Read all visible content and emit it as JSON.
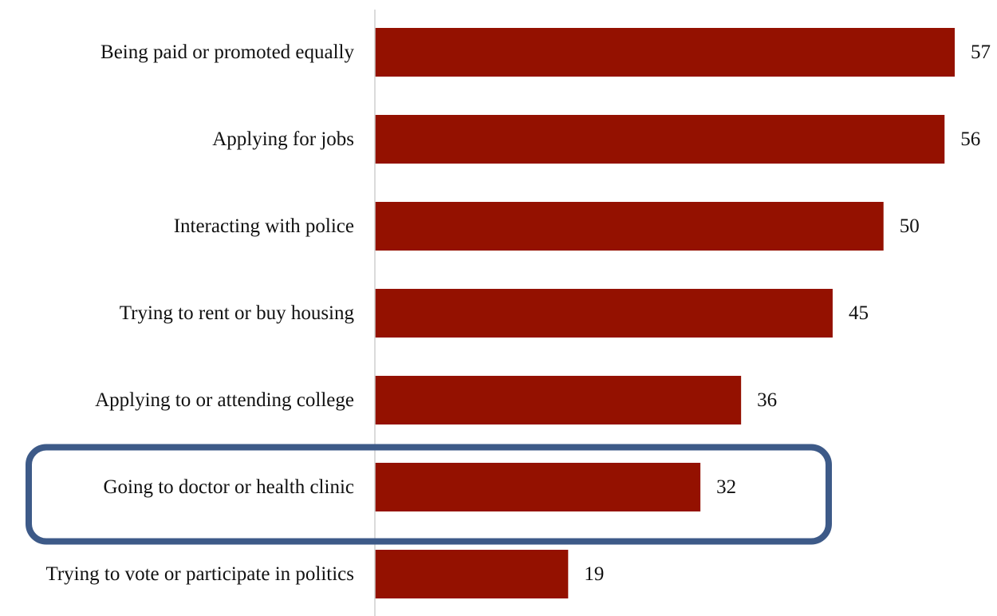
{
  "chart_data": {
    "type": "bar",
    "orientation": "horizontal",
    "categories": [
      "Being paid or promoted equally",
      "Applying for jobs",
      "Interacting with police",
      "Trying to rent or buy housing",
      "Applying to or attending college",
      "Going to doctor or health clinic",
      "Trying to vote or participate in politics"
    ],
    "values": [
      57,
      56,
      50,
      45,
      36,
      32,
      19
    ],
    "data_labels": [
      "57",
      "56",
      "50",
      "45",
      "36",
      "32",
      "19"
    ],
    "title": "",
    "xlabel": "",
    "ylabel": "",
    "xlim": [
      0,
      57
    ],
    "grid": false,
    "legend": "none",
    "highlighted_category": "Going to doctor or health clinic"
  },
  "colors": {
    "bar": "#941100",
    "axis": "#cfcfcf",
    "highlight_border": "#3d5a88",
    "text": "#111111"
  }
}
